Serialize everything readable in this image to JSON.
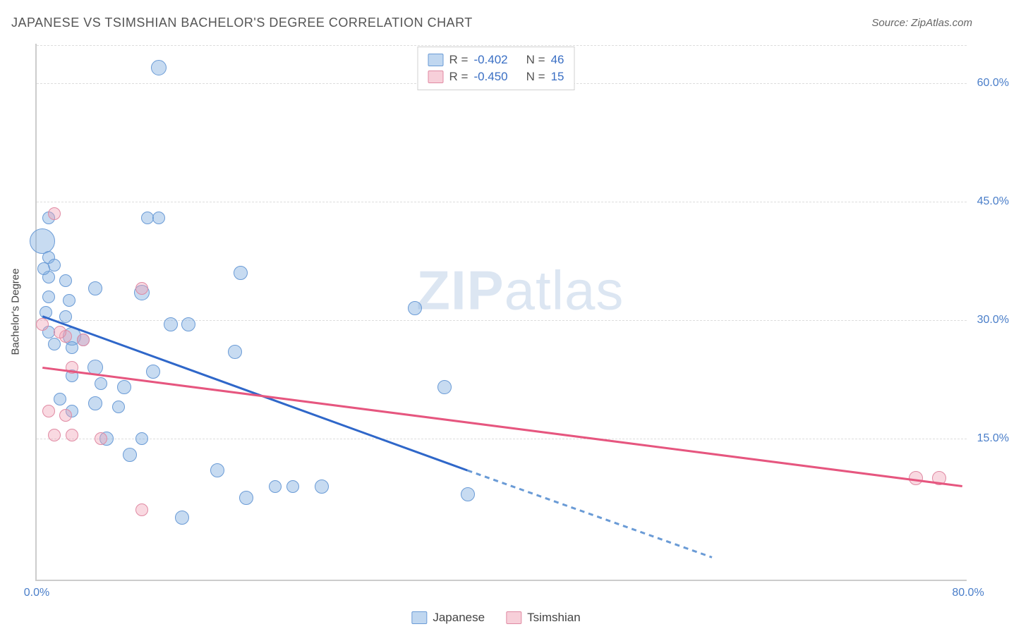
{
  "title": "JAPANESE VS TSIMSHIAN BACHELOR'S DEGREE CORRELATION CHART",
  "source_prefix": "Source: ",
  "source_name": "ZipAtlas.com",
  "watermark_bold": "ZIP",
  "watermark_light": "atlas",
  "yaxis_label": "Bachelor's Degree",
  "chart": {
    "type": "scatter",
    "background_color": "#ffffff",
    "grid_color": "#dddddd",
    "axis_color": "#cccccc",
    "tick_label_color": "#4a7ec9",
    "tick_fontsize": 16,
    "title_fontsize": 18,
    "xlim": [
      0.0,
      80.0
    ],
    "ylim": [
      -3.0,
      65.0
    ],
    "y_ticks": [
      15.0,
      30.0,
      45.0,
      60.0
    ],
    "y_tick_labels": [
      "15.0%",
      "30.0%",
      "45.0%",
      "60.0%"
    ],
    "x_ticks": [
      0.0,
      80.0
    ],
    "x_tick_labels": [
      "0.0%",
      "80.0%"
    ],
    "series": [
      {
        "name": "Japanese",
        "color_fill": "rgba(130,175,225,0.45)",
        "color_stroke": "#6a9bd6",
        "marker_radius_default": 9,
        "trend_color": "#2f67c9",
        "trend_width": 3,
        "trend_dash_color": "#6a9bd6",
        "r": "-0.402",
        "n": "46",
        "trend": {
          "x1": 0.5,
          "y1": 30.5,
          "x2_solid": 37.0,
          "y2_solid": 11.0,
          "x2_dash": 58.0,
          "y2_dash": 0.0
        },
        "points": [
          {
            "x": 10.5,
            "y": 62.0,
            "r": 11
          },
          {
            "x": 1.0,
            "y": 43.0,
            "r": 9
          },
          {
            "x": 9.5,
            "y": 43.0,
            "r": 9
          },
          {
            "x": 10.5,
            "y": 43.0,
            "r": 9
          },
          {
            "x": 0.5,
            "y": 40.0,
            "r": 18
          },
          {
            "x": 1.0,
            "y": 38.0,
            "r": 9
          },
          {
            "x": 1.5,
            "y": 37.0,
            "r": 9
          },
          {
            "x": 17.5,
            "y": 36.0,
            "r": 10
          },
          {
            "x": 1.0,
            "y": 35.5,
            "r": 9
          },
          {
            "x": 2.5,
            "y": 35.0,
            "r": 9
          },
          {
            "x": 5.0,
            "y": 34.0,
            "r": 10
          },
          {
            "x": 1.0,
            "y": 33.0,
            "r": 9
          },
          {
            "x": 9.0,
            "y": 33.5,
            "r": 11
          },
          {
            "x": 32.5,
            "y": 31.5,
            "r": 10
          },
          {
            "x": 0.8,
            "y": 31.0,
            "r": 9
          },
          {
            "x": 2.5,
            "y": 30.5,
            "r": 9
          },
          {
            "x": 11.5,
            "y": 29.5,
            "r": 10
          },
          {
            "x": 13.0,
            "y": 29.5,
            "r": 10
          },
          {
            "x": 1.0,
            "y": 28.5,
            "r": 9
          },
          {
            "x": 3.0,
            "y": 28.0,
            "r": 13
          },
          {
            "x": 4.0,
            "y": 27.5,
            "r": 9
          },
          {
            "x": 1.5,
            "y": 27.0,
            "r": 9
          },
          {
            "x": 3.0,
            "y": 26.5,
            "r": 9
          },
          {
            "x": 17.0,
            "y": 26.0,
            "r": 10
          },
          {
            "x": 5.0,
            "y": 24.0,
            "r": 11
          },
          {
            "x": 10.0,
            "y": 23.5,
            "r": 10
          },
          {
            "x": 3.0,
            "y": 23.0,
            "r": 9
          },
          {
            "x": 5.5,
            "y": 22.0,
            "r": 9
          },
          {
            "x": 7.5,
            "y": 21.5,
            "r": 10
          },
          {
            "x": 35.0,
            "y": 21.5,
            "r": 10
          },
          {
            "x": 2.0,
            "y": 20.0,
            "r": 9
          },
          {
            "x": 5.0,
            "y": 19.5,
            "r": 10
          },
          {
            "x": 7.0,
            "y": 19.0,
            "r": 9
          },
          {
            "x": 3.0,
            "y": 18.5,
            "r": 9
          },
          {
            "x": 6.0,
            "y": 15.0,
            "r": 10
          },
          {
            "x": 9.0,
            "y": 15.0,
            "r": 9
          },
          {
            "x": 8.0,
            "y": 13.0,
            "r": 10
          },
          {
            "x": 15.5,
            "y": 11.0,
            "r": 10
          },
          {
            "x": 20.5,
            "y": 9.0,
            "r": 9
          },
          {
            "x": 22.0,
            "y": 9.0,
            "r": 9
          },
          {
            "x": 24.5,
            "y": 9.0,
            "r": 10
          },
          {
            "x": 18.0,
            "y": 7.5,
            "r": 10
          },
          {
            "x": 37.0,
            "y": 8.0,
            "r": 10
          },
          {
            "x": 12.5,
            "y": 5.0,
            "r": 10
          },
          {
            "x": 2.8,
            "y": 32.5,
            "r": 9
          },
          {
            "x": 0.6,
            "y": 36.5,
            "r": 9
          }
        ]
      },
      {
        "name": "Tsimshian",
        "color_fill": "rgba(240,160,180,0.40)",
        "color_stroke": "#e08aa3",
        "marker_radius_default": 9,
        "trend_color": "#e6567f",
        "trend_width": 3,
        "r": "-0.450",
        "n": "15",
        "trend": {
          "x1": 0.5,
          "y1": 24.0,
          "x2_solid": 79.5,
          "y2_solid": 9.0
        },
        "points": [
          {
            "x": 1.5,
            "y": 43.5,
            "r": 9
          },
          {
            "x": 9.0,
            "y": 34.0,
            "r": 9
          },
          {
            "x": 0.5,
            "y": 29.5,
            "r": 9
          },
          {
            "x": 2.5,
            "y": 28.0,
            "r": 9
          },
          {
            "x": 2.0,
            "y": 28.5,
            "r": 9
          },
          {
            "x": 4.0,
            "y": 27.5,
            "r": 9
          },
          {
            "x": 3.0,
            "y": 24.0,
            "r": 9
          },
          {
            "x": 1.0,
            "y": 18.5,
            "r": 9
          },
          {
            "x": 2.5,
            "y": 18.0,
            "r": 9
          },
          {
            "x": 1.5,
            "y": 15.5,
            "r": 9
          },
          {
            "x": 3.0,
            "y": 15.5,
            "r": 9
          },
          {
            "x": 5.5,
            "y": 15.0,
            "r": 9
          },
          {
            "x": 9.0,
            "y": 6.0,
            "r": 9
          },
          {
            "x": 75.5,
            "y": 10.0,
            "r": 10
          },
          {
            "x": 77.5,
            "y": 10.0,
            "r": 10
          }
        ]
      }
    ]
  },
  "legend": {
    "r_label": "R =",
    "n_label": "N ="
  },
  "xlegend_labels": [
    "Japanese",
    "Tsimshian"
  ]
}
